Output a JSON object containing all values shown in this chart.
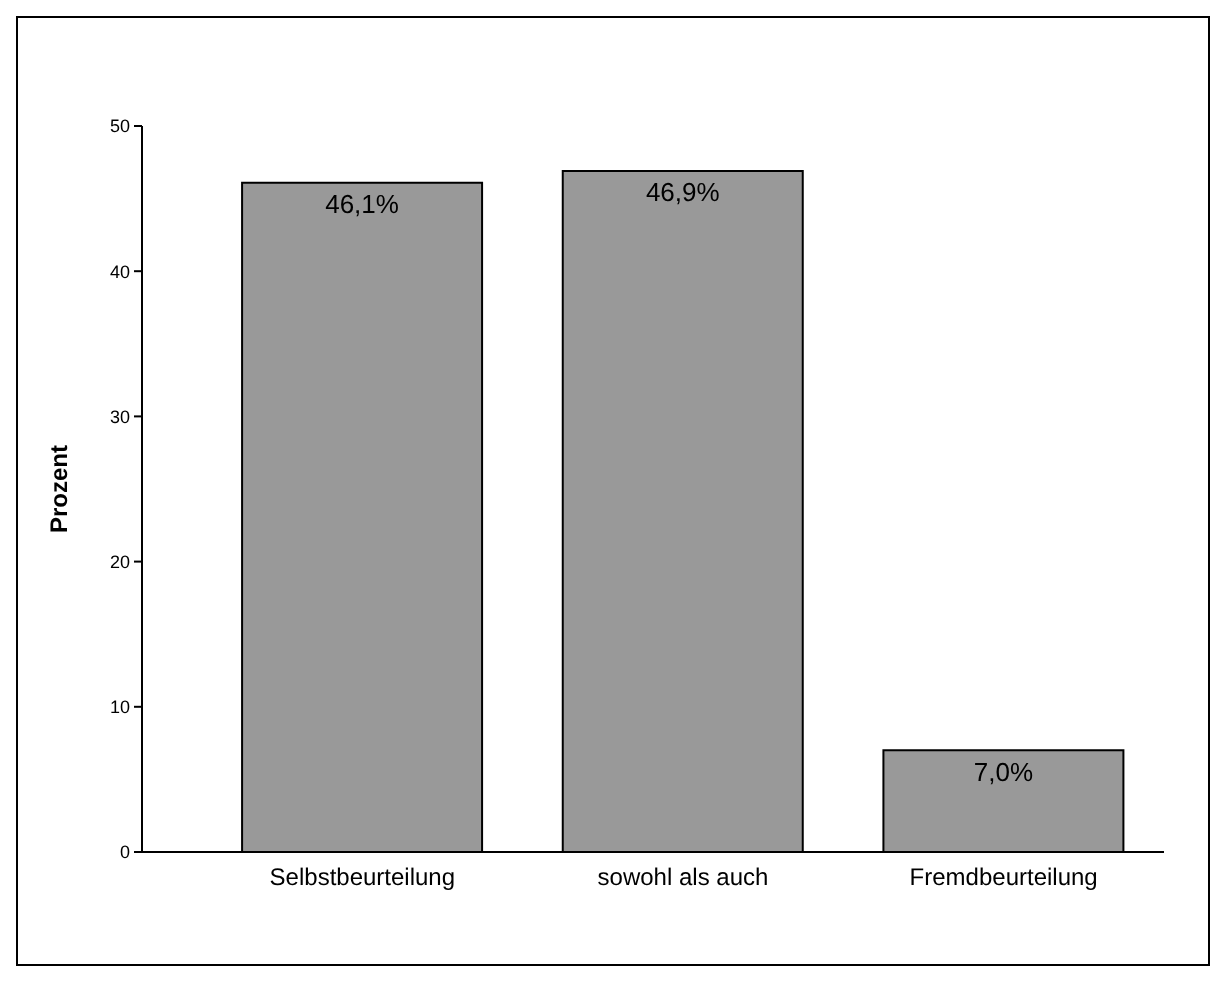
{
  "chart_data": {
    "type": "bar",
    "ylabel": "Prozent",
    "categories": [
      "Selbstbeurteilung",
      "sowohl als auch",
      "Fremdbeurteilung"
    ],
    "values": [
      46.1,
      46.9,
      7.0
    ],
    "value_labels": [
      "46,1%",
      "46,9%",
      "7,0%"
    ],
    "color": "#999999",
    "ylim": [
      0,
      50
    ],
    "yticks": [
      0,
      10,
      20,
      30,
      40,
      50
    ],
    "grid": false
  }
}
